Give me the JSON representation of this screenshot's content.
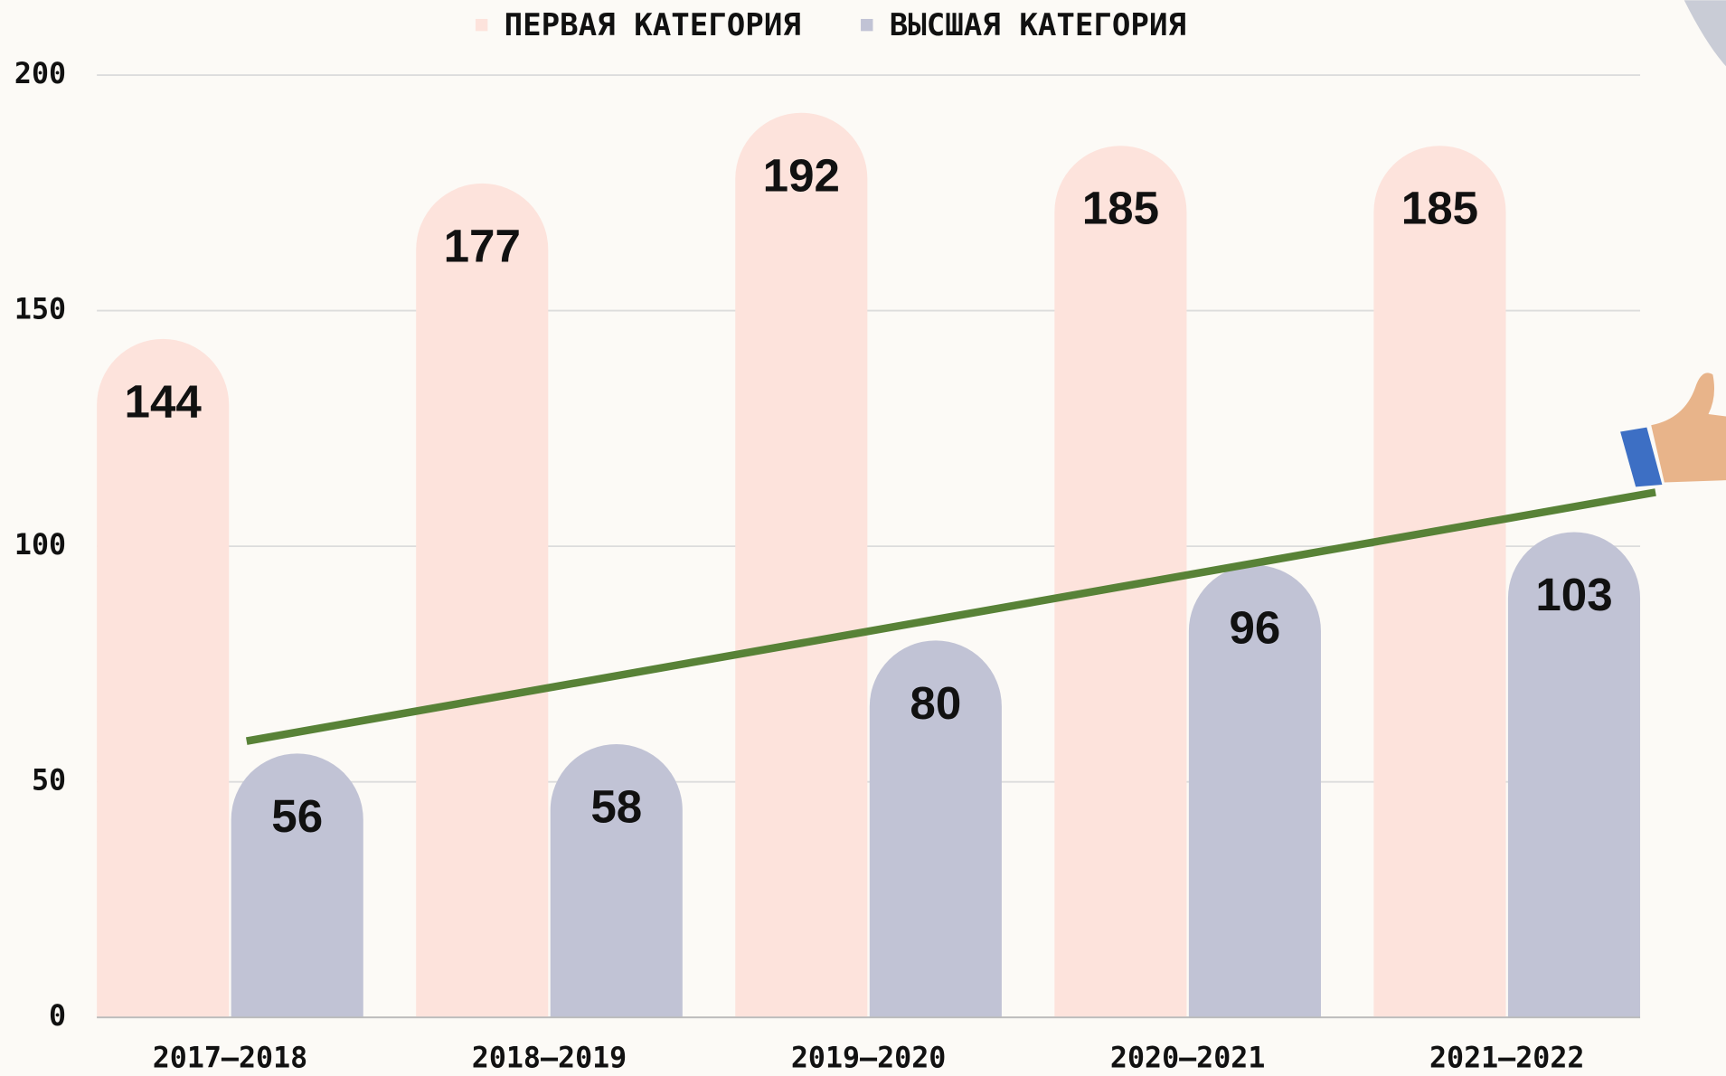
{
  "chart_data": {
    "type": "bar",
    "categories": [
      "2017–2018",
      "2018–2019",
      "2019–2020",
      "2020–2021",
      "2021–2022"
    ],
    "series": [
      {
        "name": "ПЕРВАЯ КАТЕГОРИЯ",
        "color": "#fde3dc",
        "values": [
          144,
          177,
          192,
          185,
          185
        ]
      },
      {
        "name": "ВЫСШАЯ КАТЕГОРИЯ",
        "color": "#c1c3d5",
        "values": [
          56,
          58,
          80,
          96,
          103
        ]
      }
    ],
    "ylim": [
      0,
      200
    ],
    "yticks": [
      0,
      50,
      100,
      150,
      200
    ],
    "grid": true
  }
}
